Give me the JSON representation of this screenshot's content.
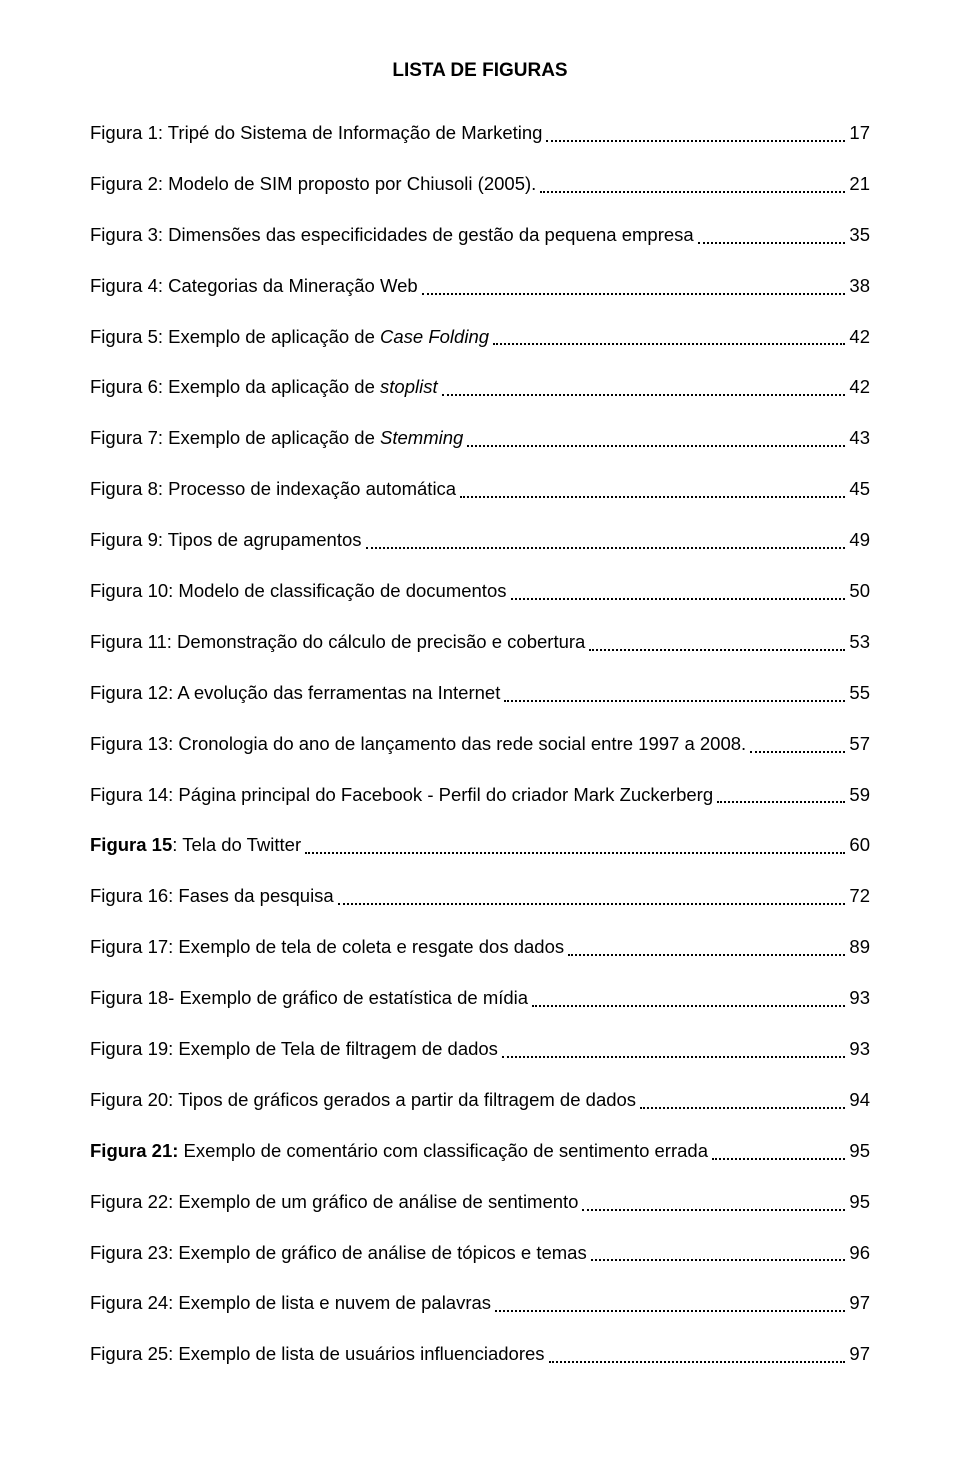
{
  "title": "LISTA DE FIGURAS",
  "entries": [
    {
      "label": "Figura 1: Tripé do Sistema de Informação de Marketing",
      "page": "17",
      "bold": false,
      "italic": false
    },
    {
      "label": "Figura 2: Modelo de SIM proposto por Chiusoli (2005).",
      "page": "21",
      "bold": false,
      "italic": false
    },
    {
      "label": "Figura 3: Dimensões das especificidades de gestão da pequena empresa",
      "page": "35",
      "bold": false,
      "italic": false
    },
    {
      "label": "Figura 4: Categorias da Mineração Web",
      "page": "38",
      "bold": false,
      "italic": false
    },
    {
      "label_pre": "Figura 5: Exemplo de aplicação de",
      "label_italic": "Case Folding",
      "label_post": "",
      "page": "42",
      "bold": false,
      "italic_mid": true
    },
    {
      "label_pre": "Figura 6: Exemplo da aplicação de",
      "label_italic": "stoplist",
      "label_post": "",
      "page": "42",
      "bold": false,
      "italic_mid": true
    },
    {
      "label_pre": "Figura 7: Exemplo de aplicação de",
      "label_italic": "Stemming",
      "label_post": "",
      "page": "43",
      "bold": false,
      "italic_mid": true
    },
    {
      "label": "Figura 8: Processo de indexação automática",
      "page": "45",
      "bold": false,
      "italic": false
    },
    {
      "label": "Figura 9: Tipos de agrupamentos",
      "page": "49",
      "bold": false,
      "italic": false
    },
    {
      "label": "Figura 10: Modelo de classificação de documentos",
      "page": "50",
      "bold": false,
      "italic": false
    },
    {
      "label": "Figura 11: Demonstração do cálculo de precisão e cobertura",
      "page": "53",
      "bold": false,
      "italic": false
    },
    {
      "label": "Figura 12: A evolução das ferramentas na  Internet",
      "page": "55",
      "bold": false,
      "italic": false
    },
    {
      "label": "Figura 13: Cronologia do ano de lançamento das rede social entre 1997 a 2008.",
      "page": "57",
      "bold": false,
      "italic": false
    },
    {
      "label": "Figura 14: Página principal do Facebook - Perfil do criador Mark Zuckerberg",
      "page": "59",
      "bold": false,
      "italic": false
    },
    {
      "label_bold": "Figura 15",
      "label_rest": ": Tela do Twitter",
      "page": "60",
      "bold_prefix": true
    },
    {
      "label": "Figura 16: Fases da pesquisa",
      "page": "72",
      "bold": false,
      "italic": false
    },
    {
      "label": "Figura 17: Exemplo de tela de coleta e resgate dos dados",
      "page": "89",
      "bold": false,
      "italic": false
    },
    {
      "label": "Figura 18- Exemplo de gráfico de estatística de mídia",
      "page": "93",
      "bold": false,
      "italic": false
    },
    {
      "label": "Figura 19: Exemplo de Tela de filtragem de dados",
      "page": "93",
      "bold": false,
      "italic": false
    },
    {
      "label": "Figura 20: Tipos de gráficos gerados a partir da filtragem de dados",
      "page": "94",
      "bold": false,
      "italic": false
    },
    {
      "label_bold": "Figura 21:",
      "label_rest": " Exemplo de comentário com classificação de sentimento errada",
      "page": "95",
      "bold_prefix": true
    },
    {
      "label": "Figura 22: Exemplo de um gráfico de análise de sentimento",
      "page": "95",
      "bold": false,
      "italic": false
    },
    {
      "label": "Figura 23: Exemplo de gráfico de análise de tópicos e temas",
      "page": "96",
      "bold": false,
      "italic": false
    },
    {
      "label": "Figura 24: Exemplo de lista e nuvem de palavras",
      "page": "97",
      "bold": false,
      "italic": false
    },
    {
      "label": "Figura 25: Exemplo de lista de usuários influenciadores",
      "page": "97",
      "bold": false,
      "italic": false
    }
  ]
}
